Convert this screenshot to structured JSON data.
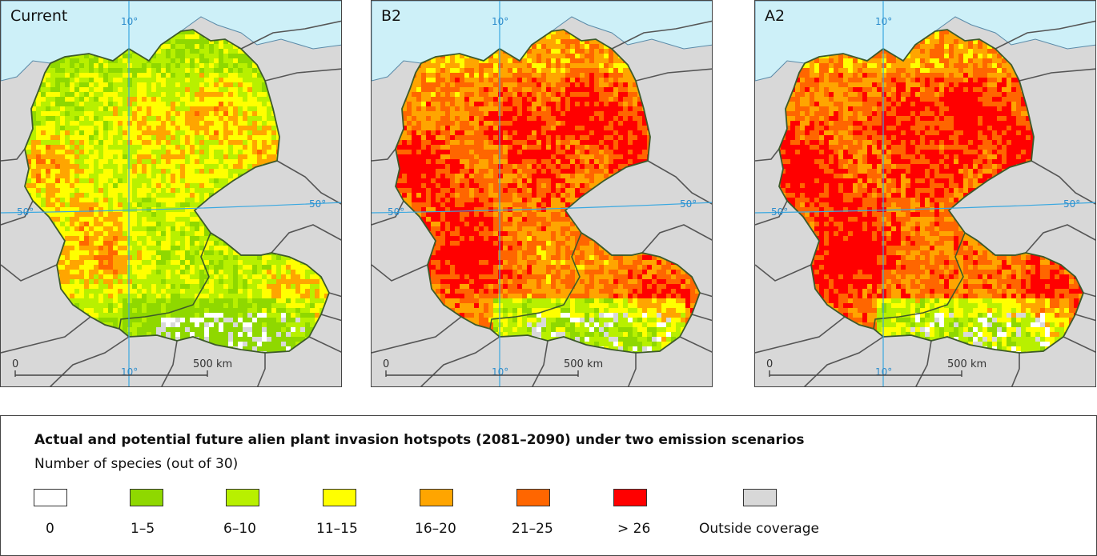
{
  "panels": [
    {
      "label": "Current",
      "scenario": "current"
    },
    {
      "label": "B2",
      "scenario": "b2"
    },
    {
      "label": "A2",
      "scenario": "a2"
    }
  ],
  "graticule": {
    "meridian_label": "10°",
    "parallel_label": "50°"
  },
  "scale_bar": {
    "start_label": "0",
    "end_label": "500 km"
  },
  "legend": {
    "title": "Actual and potential future alien plant invasion hotspots (2081–2090) under two emission scenarios",
    "subtitle": "Number of species (out of 30)",
    "classes": [
      {
        "label": "0",
        "color": "#ffffff"
      },
      {
        "label": "1–5",
        "color": "#8fd800"
      },
      {
        "label": "6–10",
        "color": "#b8f000"
      },
      {
        "label": "11–15",
        "color": "#ffff00"
      },
      {
        "label": "16–20",
        "color": "#ffa500"
      },
      {
        "label": "21–25",
        "color": "#ff6600"
      },
      {
        "label": "> 26",
        "color": "#ff0000"
      },
      {
        "label": "Outside coverage",
        "color": "#d8d8d8"
      }
    ]
  },
  "colors": {
    "sea": "#cdf0f8",
    "land_outside": "#d8d8d8",
    "border": "#555555",
    "graticule": "#3aa8e0"
  }
}
